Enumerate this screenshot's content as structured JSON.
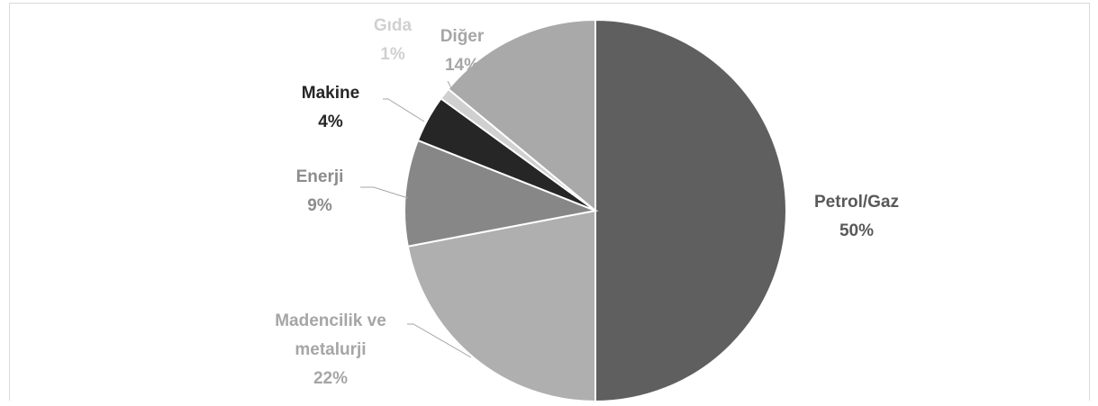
{
  "chart_data": {
    "type": "pie",
    "title": "",
    "start_angle_deg": 90,
    "direction": "clockwise",
    "legend": "none",
    "slices": [
      {
        "label": "Petrol/Gaz",
        "value": 50,
        "value_label": "50%",
        "color": "#5f5f5f",
        "label_color": "#595959"
      },
      {
        "label": "Madencilik ve metalurji",
        "label_lines": [
          "Madencilik ve",
          "metalurji"
        ],
        "value": 22,
        "value_label": "22%",
        "color": "#afafaf",
        "label_color": "#a6a6a6"
      },
      {
        "label": "Enerji",
        "value": 9,
        "value_label": "9%",
        "color": "#878787",
        "label_color": "#8c8c8c"
      },
      {
        "label": "Makine",
        "value": 4,
        "value_label": "4%",
        "color": "#262626",
        "label_color": "#262626"
      },
      {
        "label": "Gıda",
        "value": 1,
        "value_label": "1%",
        "color": "#d0d0d0",
        "label_color": "#d0d0d0"
      },
      {
        "label": "Diğer",
        "value": 14,
        "value_label": "14%",
        "color": "#a9a9a9",
        "label_color": "#a6a6a6"
      }
    ]
  }
}
